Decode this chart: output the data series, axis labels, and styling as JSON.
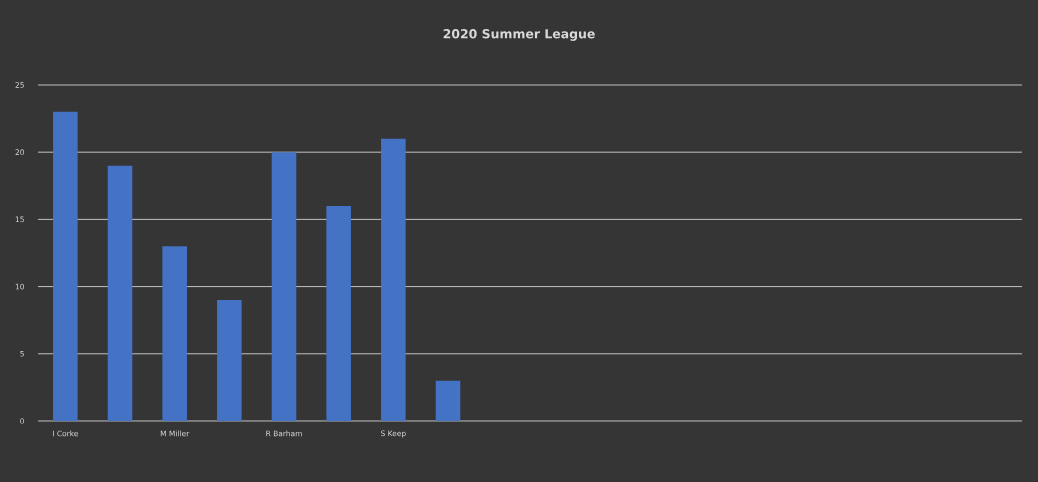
{
  "chart_data": {
    "type": "bar",
    "title": "2020 Summer League",
    "categories": [
      "I Corke",
      null,
      "M Miller",
      null,
      "R Barham",
      null,
      "S Keep",
      null,
      null,
      null,
      null,
      null,
      null,
      null,
      null,
      null,
      null,
      null
    ],
    "values": [
      23,
      19,
      13,
      9,
      20,
      16,
      21,
      3,
      null,
      null,
      null,
      null,
      null,
      null,
      null,
      null,
      null,
      null
    ],
    "color": "#4472c4",
    "ylim": [
      0,
      25
    ],
    "yticks": [
      0,
      5,
      10,
      15,
      20,
      25
    ],
    "grid": "y"
  }
}
